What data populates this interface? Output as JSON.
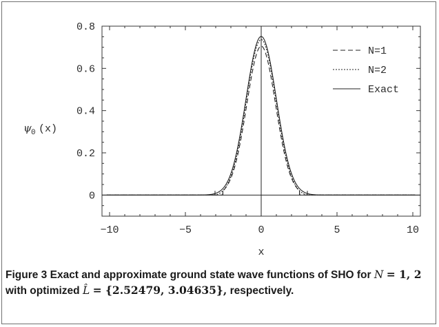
{
  "chart_data": {
    "type": "line",
    "xlabel": "x",
    "ylabel_symbol": "ψ",
    "ylabel_sub": "0",
    "ylabel_arg": "(x)",
    "xlim": [
      -10.5,
      10.5
    ],
    "ylim": [
      -0.1,
      0.8
    ],
    "xticks": [
      -10,
      -5,
      0,
      5,
      10
    ],
    "xtick_labels": [
      "−10",
      "−5",
      "0",
      "5",
      "10"
    ],
    "yticks": [
      0,
      0.2,
      0.4,
      0.6,
      0.8
    ],
    "ytick_labels": [
      "0",
      "0.2",
      "0.4",
      "0.6",
      "0.8"
    ],
    "legend_position": "top-right",
    "series": [
      {
        "name": "N=1",
        "style": "dashed",
        "L": 2.52479,
        "peak": 0.7063,
        "x": [
          -2.52479,
          -2.0,
          -1.5,
          -1.0,
          -0.5,
          0,
          0.5,
          1.0,
          1.5,
          2.0,
          2.52479
        ],
        "y": [
          0.03,
          0.064,
          0.15,
          0.343,
          0.57,
          0.706,
          0.57,
          0.343,
          0.15,
          0.064,
          0.03
        ]
      },
      {
        "name": "N=2",
        "style": "dotted",
        "L": 3.04635,
        "peak": 0.7366,
        "x": [
          -3.04635,
          -2.5,
          -2.0,
          -1.5,
          -1.0,
          -0.5,
          0,
          0.5,
          1.0,
          1.5,
          2.0,
          2.5,
          3.04635
        ],
        "y": [
          0.0,
          0.026,
          0.09,
          0.235,
          0.445,
          0.648,
          0.737,
          0.648,
          0.445,
          0.235,
          0.09,
          0.026,
          0.0
        ]
      },
      {
        "name": "Exact",
        "style": "solid",
        "peak": 0.7511,
        "x": [
          -4,
          -3,
          -2.5,
          -2,
          -1.5,
          -1,
          -0.5,
          0,
          0.5,
          1,
          1.5,
          2,
          2.5,
          3,
          4
        ],
        "y": [
          0.0003,
          0.0083,
          0.033,
          0.102,
          0.244,
          0.456,
          0.663,
          0.751,
          0.663,
          0.456,
          0.244,
          0.102,
          0.033,
          0.0083,
          0.0003
        ]
      }
    ]
  },
  "caption": {
    "figure_label": "Figure 3",
    "text_1": "Exact and approximate ground state wave functions of SHO for",
    "n_symbol": "N",
    "n_values": "= 1, 2",
    "text_2": "with optimized",
    "l_symbol": "L̂",
    "l_values": "= {2.52479, 3.04635},",
    "text_3": "respectively."
  }
}
